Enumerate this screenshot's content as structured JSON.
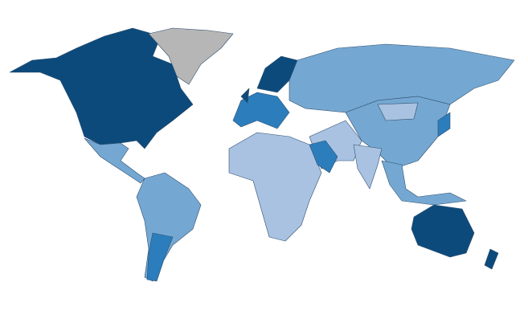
{
  "map": {
    "regions": [
      {
        "color": "#0c4a7b"
      },
      {
        "color": "#b6b6b6"
      },
      {
        "color": "#74a8d2"
      },
      {
        "color": "#74a8d2"
      },
      {
        "color": "#2c7dbb"
      },
      {
        "color": "#2c7dbb"
      },
      {
        "color": "#0c4a7b"
      },
      {
        "color": "#74a8d2"
      },
      {
        "color": "#74a8d2"
      },
      {
        "color": "#a9c2e2"
      },
      {
        "color": "#a9c2e2"
      },
      {
        "color": "#a9c2e2"
      },
      {
        "color": "#2c7dbb"
      },
      {
        "color": "#a9c2e2"
      },
      {
        "color": "#74a8d2"
      },
      {
        "color": "#0c4a7b"
      },
      {
        "color": "#0c4a7b"
      },
      {
        "color": "#2c7dbb"
      },
      {
        "color": "#0c4a7b"
      }
    ]
  }
}
